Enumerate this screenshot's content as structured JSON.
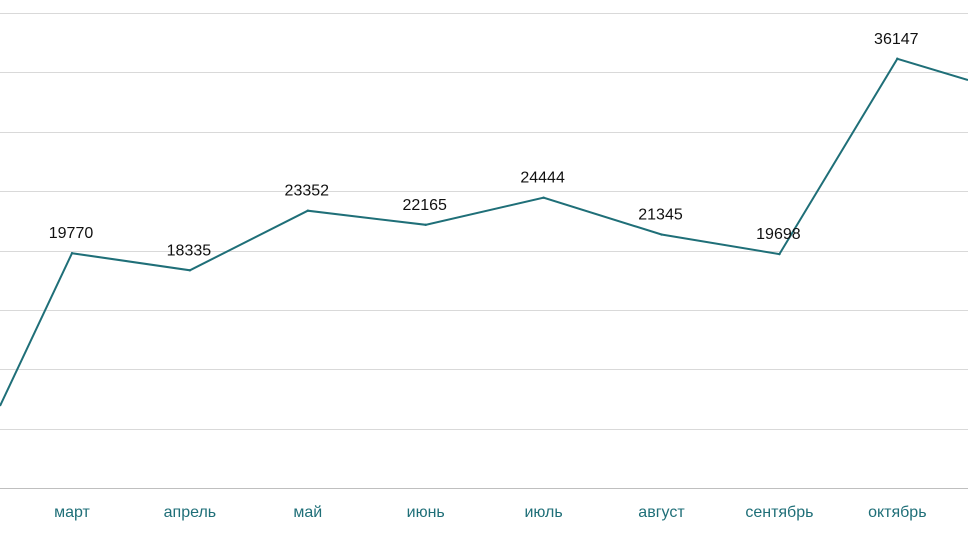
{
  "colors": {
    "line": "#1f6f78",
    "tick_text": "#1f6f78",
    "grid": "#d9d9d9",
    "label_text": "#111111"
  },
  "chart_data": {
    "type": "line",
    "categories": [
      "март",
      "апрель",
      "май",
      "июнь",
      "июль",
      "август",
      "сентябрь",
      "октябрь"
    ],
    "series": [
      {
        "values": [
          19770,
          18335,
          23352,
          22165,
          24444,
          21345,
          19698,
          36147
        ]
      }
    ],
    "data_labels": true,
    "grid": "horizontal",
    "legend": "none",
    "title": "",
    "xlabel": "",
    "ylabel": "",
    "ylim": [
      0,
      40000
    ]
  }
}
